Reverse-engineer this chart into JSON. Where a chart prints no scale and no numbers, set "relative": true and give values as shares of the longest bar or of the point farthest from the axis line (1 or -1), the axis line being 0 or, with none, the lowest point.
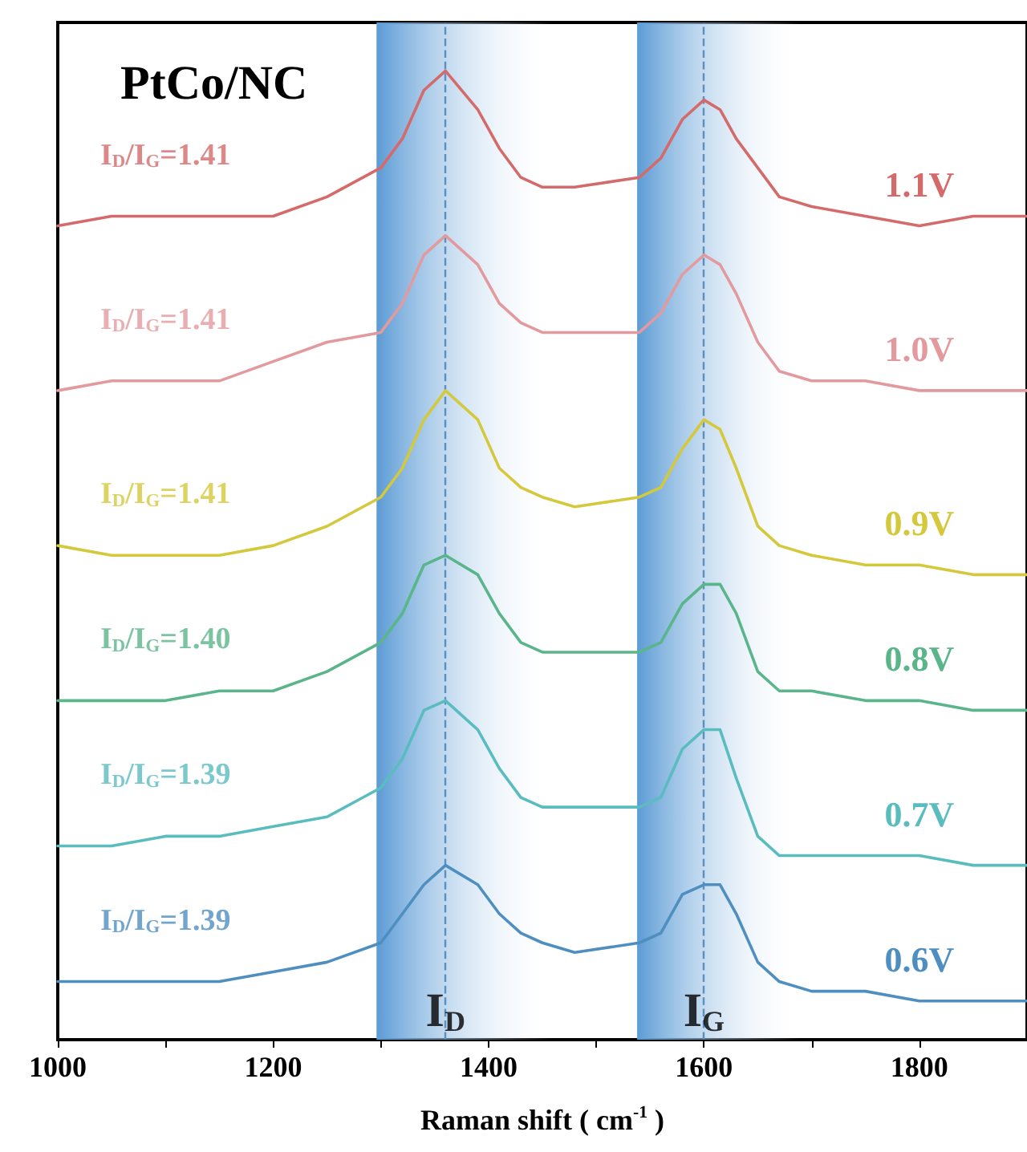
{
  "chart_data": {
    "type": "line",
    "title": "PtCo/NC",
    "xlabel": "Raman shift ( cm$^{-1}$ )",
    "relative": true,
    "x": [
      1000,
      1050,
      1100,
      1150,
      1200,
      1250,
      1300,
      1320,
      1340,
      1360,
      1390,
      1410,
      1430,
      1450,
      1480,
      1540,
      1560,
      1580,
      1600,
      1615,
      1630,
      1650,
      1670,
      1700,
      1750,
      1800,
      1850,
      1900
    ],
    "series": [
      {
        "name": "1.1V",
        "color": "#d46a6a",
        "values": [
          0.84,
          0.85,
          0.85,
          0.85,
          0.85,
          0.87,
          0.9,
          0.93,
          0.98,
          1,
          0.96,
          0.92,
          0.89,
          0.88,
          0.88,
          0.89,
          0.91,
          0.95,
          0.97,
          0.96,
          0.93,
          0.9,
          0.87,
          0.86,
          0.85,
          0.84,
          0.85,
          0.85
        ]
      },
      {
        "name": "1.0V",
        "color": "#e39a9e",
        "values": [
          0.67,
          0.68,
          0.68,
          0.68,
          0.7,
          0.72,
          0.73,
          0.76,
          0.81,
          0.83,
          0.8,
          0.76,
          0.74,
          0.73,
          0.73,
          0.73,
          0.75,
          0.79,
          0.81,
          0.8,
          0.77,
          0.72,
          0.69,
          0.68,
          0.68,
          0.67,
          0.67,
          0.67
        ]
      },
      {
        "name": "0.9V",
        "color": "#d4c83c",
        "values": [
          0.51,
          0.5,
          0.5,
          0.5,
          0.51,
          0.53,
          0.56,
          0.59,
          0.64,
          0.67,
          0.64,
          0.59,
          0.57,
          0.56,
          0.55,
          0.56,
          0.57,
          0.61,
          0.64,
          0.63,
          0.59,
          0.53,
          0.51,
          0.5,
          0.49,
          0.49,
          0.48,
          0.48
        ]
      },
      {
        "name": "0.8V",
        "color": "#5bb58a",
        "values": [
          0.35,
          0.35,
          0.35,
          0.36,
          0.36,
          0.38,
          0.41,
          0.44,
          0.49,
          0.5,
          0.48,
          0.44,
          0.41,
          0.4,
          0.4,
          0.4,
          0.41,
          0.45,
          0.47,
          0.47,
          0.44,
          0.38,
          0.36,
          0.36,
          0.35,
          0.35,
          0.34,
          0.34
        ]
      },
      {
        "name": "0.7V",
        "color": "#5bbcc0",
        "values": [
          0.2,
          0.2,
          0.21,
          0.21,
          0.22,
          0.23,
          0.26,
          0.29,
          0.34,
          0.35,
          0.32,
          0.28,
          0.25,
          0.24,
          0.24,
          0.24,
          0.25,
          0.3,
          0.32,
          0.32,
          0.27,
          0.21,
          0.19,
          0.19,
          0.19,
          0.19,
          0.18,
          0.18
        ]
      },
      {
        "name": "0.6V",
        "color": "#4f8fc0",
        "values": [
          0.06,
          0.06,
          0.06,
          0.06,
          0.07,
          0.08,
          0.1,
          0.13,
          0.16,
          0.18,
          0.16,
          0.13,
          0.11,
          0.1,
          0.09,
          0.1,
          0.11,
          0.15,
          0.16,
          0.16,
          0.13,
          0.08,
          0.06,
          0.05,
          0.05,
          0.04,
          0.04,
          0.04
        ]
      }
    ],
    "xlim": [
      1000,
      1900
    ],
    "xticks": [
      1000,
      {
        "value": 1100,
        "label": null
      },
      1200,
      {
        "value": 1300,
        "label": null
      },
      1400,
      {
        "value": 1500,
        "label": null
      },
      1600,
      {
        "value": 1700,
        "label": null
      },
      1800
    ],
    "annotations": [
      "I$_{D}$/I$_{G}$=1.41",
      "I$_{D}$/I$_{G}$=1.41",
      "I$_{D}$/I$_{G}$=1.41",
      "I$_{D}$/I$_{G}$=1.40",
      "I$_{D}$/I$_{G}$=1.39",
      "I$_{D}$/I$_{G}$=1.39",
      {
        "text": "I$_{D}$",
        "x": 1360,
        "y": 0.03
      },
      {
        "text": "I$_{G}$",
        "x": 1600,
        "y": 0.03
      }
    ],
    "bands": [
      {
        "axis": "x",
        "from": 1296,
        "to": 1460,
        "color": "#5b9bd5"
      },
      {
        "axis": "x",
        "from": 1538,
        "to": 1690,
        "color": "#5b9bd5"
      }
    ],
    "ref_lines": [
      {
        "axis": "x",
        "value": 1360,
        "color": "#5b8fc0",
        "line_style": "dashed"
      },
      {
        "axis": "x",
        "value": 1600,
        "color": "#5b8fc0",
        "line_style": "dashed"
      }
    ],
    "grid": false,
    "legend": false,
    "marker": "none",
    "line_style": "solid"
  }
}
